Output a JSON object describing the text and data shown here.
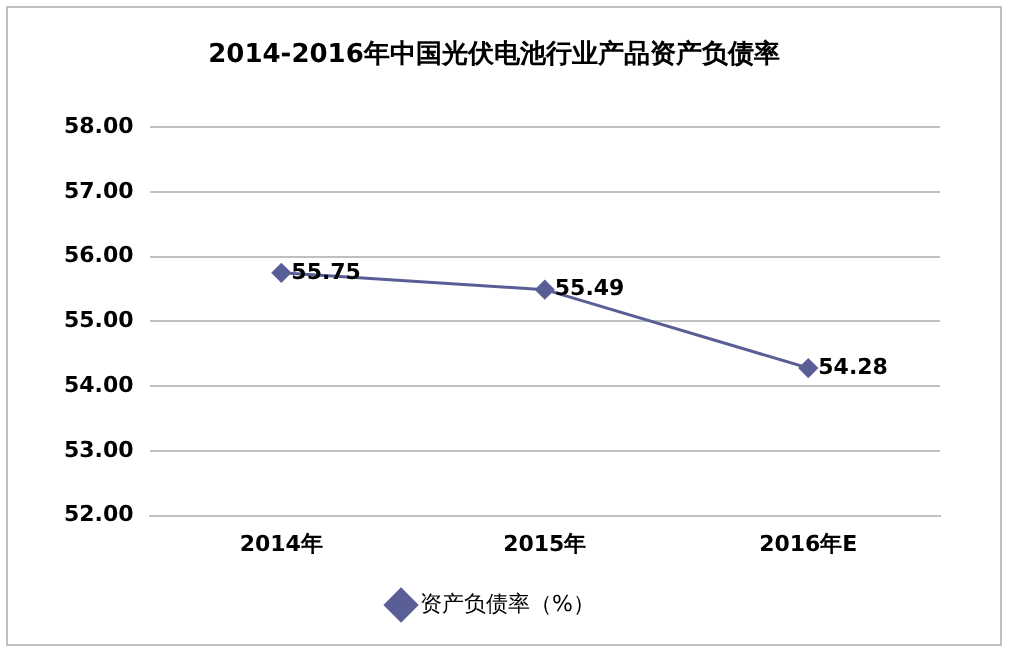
{
  "chart_data": {
    "type": "line",
    "title": "2014-2016年中国光伏电池行业产品资产负债率",
    "categories": [
      "2014年",
      "2015年",
      "2016年E"
    ],
    "series": [
      {
        "name": "资产负债率（%）",
        "color": "#5a5e96",
        "values": [
          55.75,
          55.49,
          54.28
        ]
      }
    ],
    "ylim": [
      52,
      58
    ],
    "yticks": [
      {
        "value": 52,
        "label": "52.00"
      },
      {
        "value": 53,
        "label": "53.00"
      },
      {
        "value": 54,
        "label": "54.00"
      },
      {
        "value": 55,
        "label": "55.00"
      },
      {
        "value": 56,
        "label": "56.00"
      },
      {
        "value": 57,
        "label": "57.00"
      },
      {
        "value": 58,
        "label": "58.00"
      }
    ],
    "grid": "y",
    "legend": "bottom",
    "marker": "diamond",
    "line_style": "solid",
    "data_labels": true
  }
}
